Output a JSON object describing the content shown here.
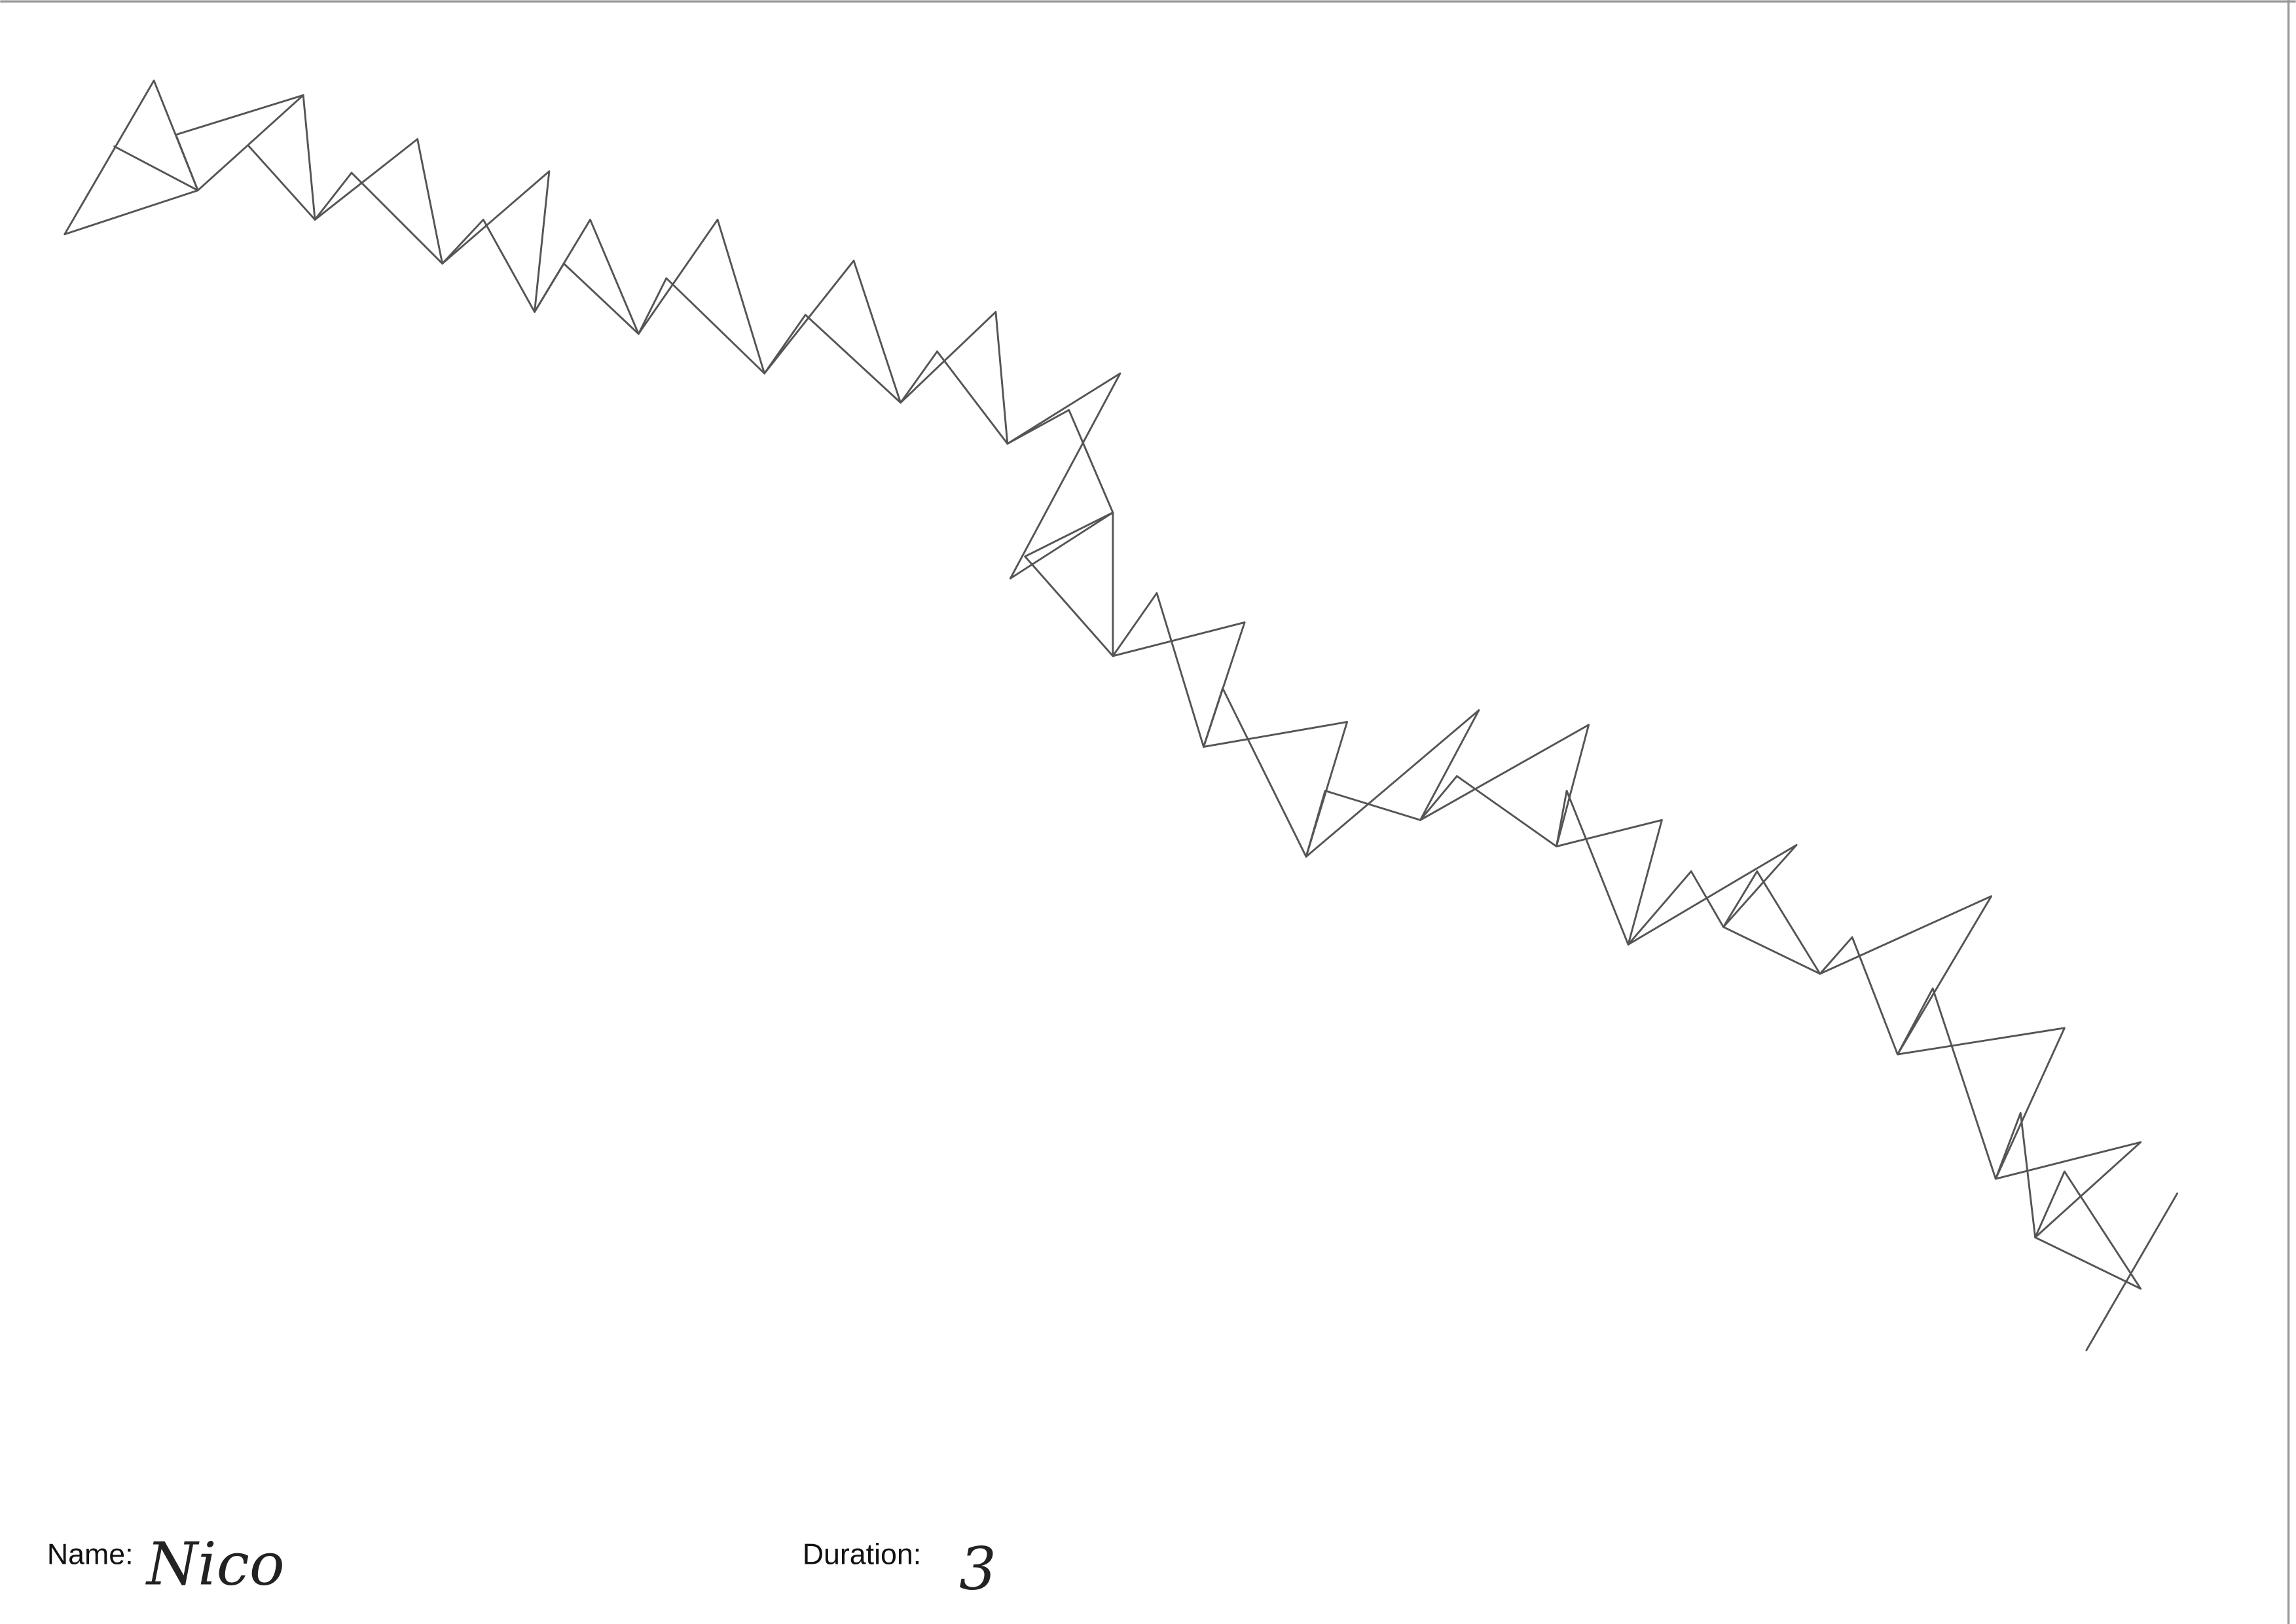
{
  "form": {
    "name_label": "Name:",
    "name_value": "Nico",
    "duration_label": "Duration:",
    "duration_value": "3"
  }
}
